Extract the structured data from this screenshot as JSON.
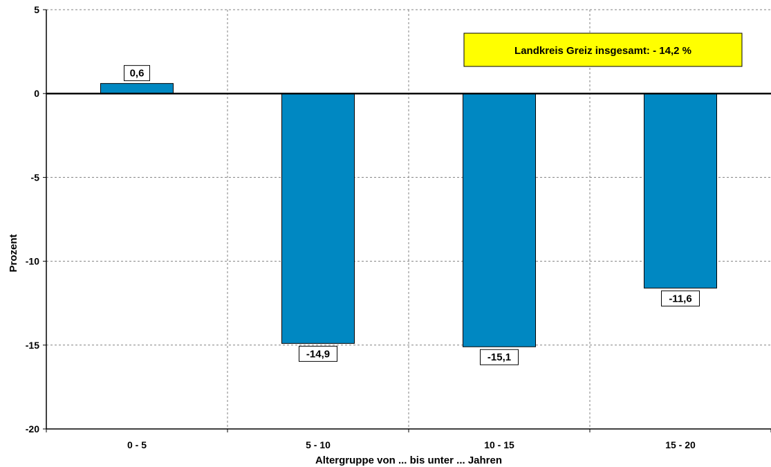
{
  "chart_data": {
    "type": "bar",
    "categories": [
      "0 - 5",
      "5 - 10",
      "10 - 15",
      "15 - 20"
    ],
    "values": [
      0.6,
      -14.9,
      -15.1,
      -11.6
    ],
    "value_labels": [
      "0,6",
      "-14,9",
      "-15,1",
      "-11,6"
    ],
    "xlabel": "Altergruppe von ... bis unter ... Jahren",
    "ylabel": "Prozent",
    "ylim": [
      -20,
      5
    ],
    "yticks": [
      5,
      0,
      -5,
      -10,
      -15,
      -20
    ],
    "ytick_labels": [
      "5",
      "0",
      "-5",
      "-10",
      "-15",
      "-20"
    ],
    "grid": true,
    "annotation": "Landkreis Greiz insgesamt: - 14,2 %",
    "colors": {
      "bar": "#0088c2",
      "annotation_bg": "#ffff00",
      "grid": "#808080",
      "zero_line": "#000000"
    }
  }
}
